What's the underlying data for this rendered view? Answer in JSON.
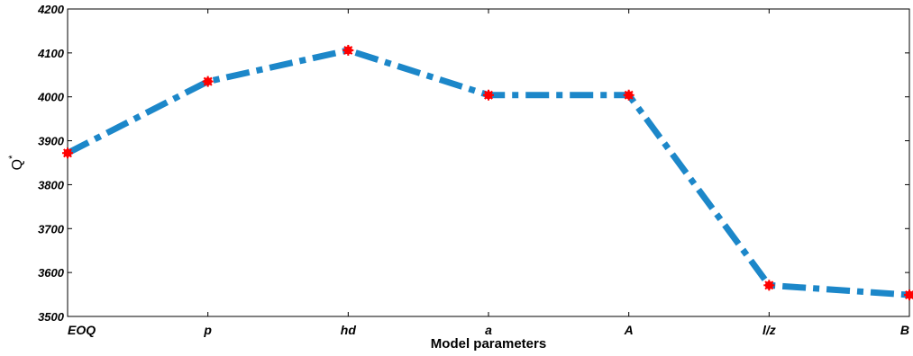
{
  "chart_data": {
    "type": "line",
    "categories": [
      "EOQ",
      "p",
      "hd",
      "a",
      "A",
      "l/z",
      "B"
    ],
    "series": [
      {
        "values": [
          3872,
          4035,
          4106,
          4004,
          4004,
          3571,
          3549
        ]
      }
    ],
    "xlabel": "Model parameters",
    "ylabel": "Q*",
    "ylabel_base": "Q",
    "ylabel_sup": "*",
    "ylim": [
      3500,
      4200
    ],
    "yticks": [
      3500,
      3600,
      3700,
      3800,
      3900,
      4000,
      4100,
      4200
    ],
    "grid": false,
    "legend": "none",
    "line_style": "dash-dot",
    "marker": "star"
  },
  "colors": {
    "line": "#1c87c9",
    "marker": "#ff0000",
    "axes": "#000000"
  }
}
